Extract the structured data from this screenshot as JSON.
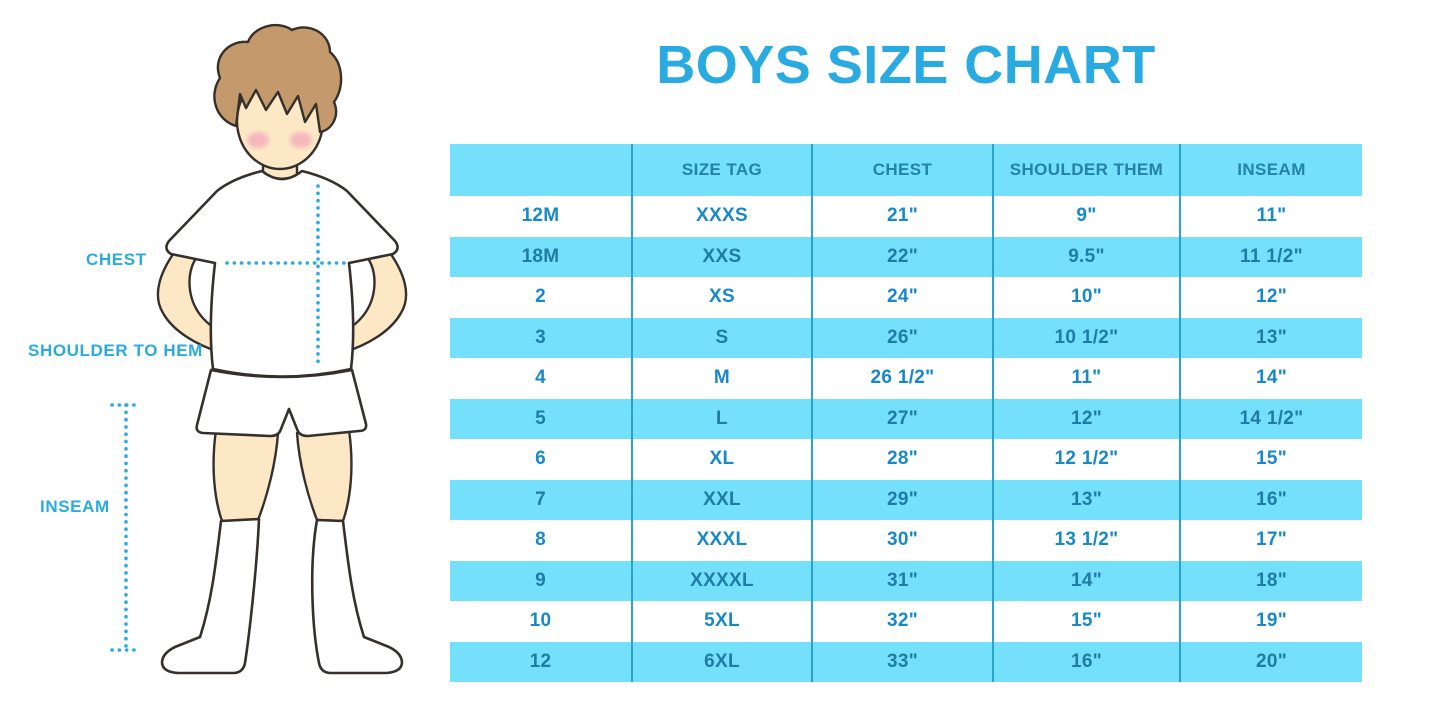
{
  "title": "BOYS SIZE CHART",
  "figure": {
    "illustration": "boy-front-hands-on-hips",
    "labels": {
      "chest": "CHEST",
      "shoulder_to_hem": "SHOULDER TO HEM",
      "inseam": "INSEAM"
    }
  },
  "colors": {
    "title_blue": "#29abe2",
    "label_text": "#29abe2",
    "dotted_line": "#29abe2",
    "row_blue_bg": "#74e0fb",
    "header_text": "#2282a8",
    "cell_text_white_row": "#1789cb",
    "cell_text_blue_row": "#1e7ca6",
    "divider": "#2ba3cf",
    "skin": "#fde8c6",
    "hair": "#c49a6c",
    "blush": "#f2abbc",
    "outline": "#35302b"
  },
  "chart_data": {
    "type": "table",
    "title": "BOYS SIZE CHART",
    "columns": [
      "",
      "SIZE TAG",
      "CHEST",
      "SHOULDER THEM",
      "INSEAM"
    ],
    "rows": [
      [
        "12M",
        "XXXS",
        "21\"",
        "9\"",
        "11\""
      ],
      [
        "18M",
        "XXS",
        "22\"",
        "9.5\"",
        "11 1/2\""
      ],
      [
        "2",
        "XS",
        "24\"",
        "10\"",
        "12\""
      ],
      [
        "3",
        "S",
        "26\"",
        "10 1/2\"",
        "13\""
      ],
      [
        "4",
        "M",
        "26 1/2\"",
        "11\"",
        "14\""
      ],
      [
        "5",
        "L",
        "27\"",
        "12\"",
        "14 1/2\""
      ],
      [
        "6",
        "XL",
        "28\"",
        "12 1/2\"",
        "15\""
      ],
      [
        "7",
        "XXL",
        "29\"",
        "13\"",
        "16\""
      ],
      [
        "8",
        "XXXL",
        "30\"",
        "13 1/2\"",
        "17\""
      ],
      [
        "9",
        "XXXXL",
        "31\"",
        "14\"",
        "18\""
      ],
      [
        "10",
        "5XL",
        "32\"",
        "15\"",
        "19\""
      ],
      [
        "12",
        "6XL",
        "33\"",
        "16\"",
        "20\""
      ]
    ]
  }
}
